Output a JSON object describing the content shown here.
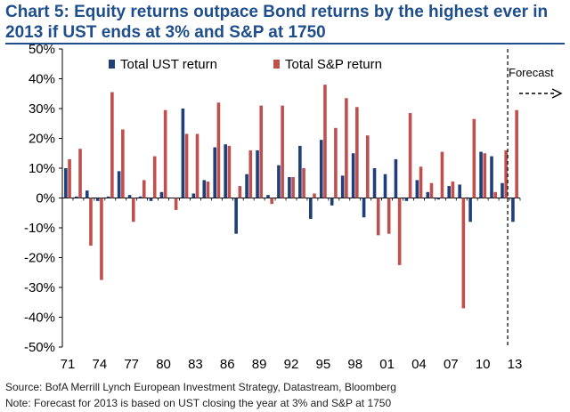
{
  "title_line1": "Chart 5: Equity returns outpace Bond returns by the highest ever in",
  "title_line2": "2013 if UST ends at 3% and S&P at 1750",
  "source_note": "Source: BofA Merrill Lynch European Investment Strategy, Datastream, Bloomberg",
  "forecast_note": "Note: Forecast for 2013 is based on UST closing the year at 3% and S&P at 1750",
  "colors": {
    "ust": "#1f3f7a",
    "sp": "#c0504d",
    "title": "#1f4e8c"
  },
  "chart_data": {
    "type": "bar",
    "title": "Chart 5: Equity returns outpace Bond returns by the highest ever in 2013 if UST ends at 3% and S&P at 1750",
    "xlabel": "",
    "ylabel": "",
    "ylim": [
      -50,
      50
    ],
    "yticks": [
      50,
      40,
      30,
      20,
      10,
      0,
      -10,
      -20,
      -30,
      -40,
      -50
    ],
    "ytick_labels": [
      "50%",
      "40%",
      "30%",
      "20%",
      "10%",
      "0%",
      "-10%",
      "-20%",
      "-30%",
      "-40%",
      "-50%"
    ],
    "x_tick_labels": [
      "71",
      "74",
      "77",
      "80",
      "83",
      "86",
      "89",
      "92",
      "95",
      "98",
      "01",
      "04",
      "07",
      "10",
      "13"
    ],
    "categories": [
      1971,
      1972,
      1973,
      1974,
      1975,
      1976,
      1977,
      1978,
      1979,
      1980,
      1981,
      1982,
      1983,
      1984,
      1985,
      1986,
      1987,
      1988,
      1989,
      1990,
      1991,
      1992,
      1993,
      1994,
      1995,
      1996,
      1997,
      1998,
      1999,
      2000,
      2001,
      2002,
      2003,
      2004,
      2005,
      2006,
      2007,
      2008,
      2009,
      2010,
      2011,
      2012,
      2013
    ],
    "series": [
      {
        "name": "Total UST return",
        "color": "#1f3f7a",
        "values": [
          10,
          0.5,
          2.5,
          -1,
          0.5,
          9,
          1,
          0.5,
          -1,
          2,
          0,
          30,
          1.5,
          6,
          17,
          18,
          -12,
          8,
          16,
          1,
          11,
          7,
          17.5,
          -7,
          19.5,
          -2.5,
          7.5,
          15,
          -6.5,
          10,
          8,
          13,
          -1,
          6,
          2,
          -0.5,
          4,
          4.5,
          -8,
          15.5,
          14,
          5,
          -8
        ]
      },
      {
        "name": "Total S&P return",
        "color": "#c0504d",
        "values": [
          13,
          16.5,
          -16,
          -27.5,
          35.5,
          23,
          -8,
          6,
          14,
          29.5,
          -4,
          21.5,
          21.5,
          5.5,
          32,
          17.5,
          4,
          16,
          31,
          -2,
          31,
          7,
          10,
          1.5,
          38,
          23.5,
          33.5,
          30.5,
          21,
          -12.5,
          -12,
          -22.5,
          28.5,
          10.5,
          5,
          15.5,
          5.5,
          -37,
          26.5,
          15,
          2,
          16,
          29.5
        ]
      }
    ],
    "legend_position": "top",
    "grid": false,
    "forecast_label": "Forecast",
    "forecast_from": 2013
  }
}
